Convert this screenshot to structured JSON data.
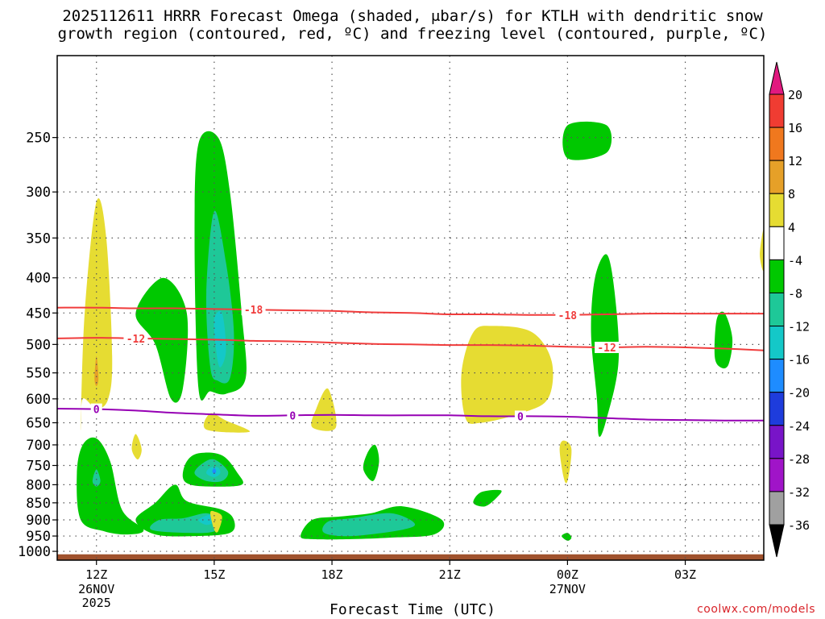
{
  "chart_data": {
    "type": "heatmap",
    "title_line1": "2025112611 HRRR Forecast Omega (shaded, μbar/s) for KTLH with dendritic snow",
    "title_line2": "growth region (contoured, red, ºC) and freezing level (contoured, purple, ºC)",
    "xlabel": "Forecast Time (UTC)",
    "credit": "coolwx.com/models",
    "x_hours_range": [
      -1,
      17
    ],
    "x_ticks": [
      {
        "hour": 0,
        "label": "12Z",
        "sub1": "26NOV",
        "sub2": "2025"
      },
      {
        "hour": 3,
        "label": "15Z",
        "sub1": "",
        "sub2": ""
      },
      {
        "hour": 6,
        "label": "18Z",
        "sub1": "",
        "sub2": ""
      },
      {
        "hour": 9,
        "label": "21Z",
        "sub1": "",
        "sub2": ""
      },
      {
        "hour": 12,
        "label": "00Z",
        "sub1": "27NOV",
        "sub2": ""
      },
      {
        "hour": 15,
        "label": "03Z",
        "sub1": "",
        "sub2": ""
      }
    ],
    "y_pressure_range": [
      1030,
      190
    ],
    "y_ticks": [
      "250",
      "300",
      "350",
      "400",
      "450",
      "500",
      "550",
      "600",
      "650",
      "700",
      "750",
      "800",
      "850",
      "900",
      "950",
      "1000"
    ],
    "colorbar": {
      "labels": [
        "20",
        "16",
        "12",
        "8",
        "4",
        "-4",
        "-8",
        "-12",
        "-16",
        "-20",
        "-24",
        "-28",
        "-32",
        "-36"
      ],
      "colors": [
        "#e1197f",
        "#f03c32",
        "#f0781e",
        "#e6a028",
        "#e6dc32",
        "#ffffff",
        "#00c800",
        "#1ec898",
        "#14c8c8",
        "#1e8cff",
        "#1e3cdc",
        "#7814c8",
        "#a014c8",
        "#a0a0a0",
        "#000000"
      ]
    },
    "omega_regions": [
      {
        "color": "#e6dc32",
        "points": [
          [
            -0.4,
            660
          ],
          [
            -0.3,
            450
          ],
          [
            0.0,
            310
          ],
          [
            0.25,
            350
          ],
          [
            0.4,
            520
          ],
          [
            0.3,
            600
          ],
          [
            0.0,
            620
          ],
          [
            -0.35,
            600
          ]
        ]
      },
      {
        "color": "#e6a028",
        "points": [
          [
            -0.05,
            560
          ],
          [
            0.0,
            520
          ],
          [
            0.05,
            560
          ],
          [
            0.0,
            575
          ]
        ]
      },
      {
        "color": "#00c800",
        "points": [
          [
            1.0,
            450
          ],
          [
            1.7,
            400
          ],
          [
            2.3,
            450
          ],
          [
            2.2,
            580
          ],
          [
            1.9,
            600
          ],
          [
            1.5,
            500
          ]
        ]
      },
      {
        "color": "#00c800",
        "points": [
          [
            2.6,
            580
          ],
          [
            2.5,
            350
          ],
          [
            2.6,
            255
          ],
          [
            3.1,
            250
          ],
          [
            3.4,
            300
          ],
          [
            3.7,
            450
          ],
          [
            3.8,
            560
          ],
          [
            3.3,
            590
          ],
          [
            2.9,
            585
          ]
        ]
      },
      {
        "color": "#1ec898",
        "points": [
          [
            2.9,
            540
          ],
          [
            2.8,
            420
          ],
          [
            3.0,
            320
          ],
          [
            3.3,
            380
          ],
          [
            3.5,
            480
          ],
          [
            3.4,
            560
          ],
          [
            3.1,
            565
          ]
        ]
      },
      {
        "color": "#14c8c8",
        "points": [
          [
            3.05,
            510
          ],
          [
            3.0,
            460
          ],
          [
            3.2,
            450
          ],
          [
            3.3,
            510
          ],
          [
            3.15,
            540
          ]
        ]
      },
      {
        "color": "#e6dc32",
        "points": [
          [
            2.8,
            665
          ],
          [
            2.9,
            630
          ],
          [
            3.3,
            645
          ],
          [
            3.9,
            670
          ]
        ]
      },
      {
        "color": "#e6dc32",
        "points": [
          [
            5.5,
            660
          ],
          [
            5.6,
            620
          ],
          [
            5.9,
            580
          ],
          [
            6.1,
            660
          ]
        ]
      },
      {
        "color": "#e6dc32",
        "points": [
          [
            0.9,
            710
          ],
          [
            1.0,
            675
          ],
          [
            1.15,
            710
          ],
          [
            1.05,
            735
          ]
        ]
      },
      {
        "color": "#00c800",
        "points": [
          [
            -0.5,
            770
          ],
          [
            -0.35,
            700
          ],
          [
            0.0,
            685
          ],
          [
            0.35,
            740
          ],
          [
            0.65,
            870
          ],
          [
            1.2,
            930
          ],
          [
            0.8,
            945
          ],
          [
            0.2,
            935
          ],
          [
            -0.4,
            900
          ]
        ]
      },
      {
        "color": "#1ec898",
        "points": [
          [
            -0.1,
            790
          ],
          [
            0.0,
            760
          ],
          [
            0.1,
            790
          ],
          [
            0.0,
            805
          ]
        ]
      },
      {
        "color": "#00c800",
        "points": [
          [
            1.0,
            900
          ],
          [
            1.5,
            850
          ],
          [
            2.0,
            800
          ],
          [
            2.3,
            845
          ],
          [
            3.2,
            870
          ],
          [
            3.5,
            900
          ],
          [
            3.4,
            940
          ],
          [
            2.5,
            950
          ],
          [
            1.5,
            945
          ]
        ]
      },
      {
        "color": "#1ec898",
        "points": [
          [
            1.4,
            930
          ],
          [
            1.6,
            900
          ],
          [
            2.2,
            895
          ],
          [
            2.8,
            880
          ],
          [
            3.1,
            900
          ],
          [
            3.0,
            935
          ],
          [
            2.3,
            940
          ]
        ]
      },
      {
        "color": "#14c8c8",
        "points": [
          [
            2.6,
            900
          ],
          [
            2.9,
            885
          ],
          [
            3.0,
            905
          ],
          [
            2.8,
            915
          ]
        ]
      },
      {
        "color": "#00c800",
        "points": [
          [
            2.2,
            780
          ],
          [
            2.3,
            740
          ],
          [
            2.6,
            720
          ],
          [
            3.2,
            725
          ],
          [
            3.6,
            770
          ],
          [
            3.7,
            800
          ],
          [
            3.0,
            805
          ],
          [
            2.4,
            800
          ]
        ]
      },
      {
        "color": "#1ec898",
        "points": [
          [
            2.5,
            770
          ],
          [
            2.7,
            745
          ],
          [
            3.0,
            735
          ],
          [
            3.35,
            765
          ],
          [
            3.2,
            790
          ],
          [
            2.8,
            790
          ]
        ]
      },
      {
        "color": "#14c8c8",
        "points": [
          [
            2.8,
            770
          ],
          [
            2.9,
            755
          ],
          [
            3.1,
            755
          ],
          [
            3.15,
            770
          ],
          [
            3.0,
            780
          ]
        ]
      },
      {
        "color": "#1e8cff",
        "points": [
          [
            2.95,
            765
          ],
          [
            3.0,
            757
          ],
          [
            3.05,
            765
          ],
          [
            3.0,
            772
          ]
        ]
      },
      {
        "color": "#e6dc32",
        "points": [
          [
            2.9,
            880
          ],
          [
            3.0,
            875
          ],
          [
            3.2,
            890
          ],
          [
            3.1,
            935
          ],
          [
            3.0,
            930
          ]
        ]
      },
      {
        "color": "#00c800",
        "points": [
          [
            5.2,
            950
          ],
          [
            5.5,
            900
          ],
          [
            6.2,
            890
          ],
          [
            7.0,
            880
          ],
          [
            7.8,
            860
          ],
          [
            8.8,
            900
          ],
          [
            8.6,
            945
          ],
          [
            7.5,
            955
          ],
          [
            6.5,
            960
          ],
          [
            5.5,
            960
          ]
        ]
      },
      {
        "color": "#1ec898",
        "points": [
          [
            5.8,
            940
          ],
          [
            5.9,
            905
          ],
          [
            6.5,
            895
          ],
          [
            7.5,
            880
          ],
          [
            8.1,
            910
          ],
          [
            7.8,
            930
          ],
          [
            6.5,
            950
          ]
        ]
      },
      {
        "color": "#00c800",
        "points": [
          [
            6.8,
            760
          ],
          [
            6.9,
            720
          ],
          [
            7.1,
            700
          ],
          [
            7.2,
            740
          ],
          [
            7.05,
            790
          ]
        ]
      },
      {
        "color": "#e6dc32",
        "points": [
          [
            9.4,
            640
          ],
          [
            9.3,
            550
          ],
          [
            9.6,
            480
          ],
          [
            10.1,
            470
          ],
          [
            11.1,
            480
          ],
          [
            11.6,
            530
          ],
          [
            11.5,
            600
          ],
          [
            10.8,
            630
          ],
          [
            9.8,
            650
          ]
        ]
      },
      {
        "color": "#00c800",
        "points": [
          [
            9.6,
            850
          ],
          [
            9.8,
            820
          ],
          [
            10.3,
            815
          ],
          [
            10.2,
            835
          ],
          [
            9.9,
            860
          ]
        ]
      },
      {
        "color": "#e6dc32",
        "points": [
          [
            11.8,
            710
          ],
          [
            11.9,
            690
          ],
          [
            12.1,
            710
          ],
          [
            12.0,
            790
          ],
          [
            11.9,
            780
          ]
        ]
      },
      {
        "color": "#00c800",
        "points": [
          [
            11.85,
            950
          ],
          [
            12.0,
            940
          ],
          [
            12.1,
            955
          ],
          [
            12.0,
            965
          ]
        ]
      },
      {
        "color": "#00c800",
        "points": [
          [
            12.0,
            240
          ],
          [
            13.0,
            240
          ],
          [
            13.0,
            263
          ],
          [
            12.0,
            268
          ]
        ]
      },
      {
        "color": "#00c800",
        "points": [
          [
            12.6,
            480
          ],
          [
            12.7,
            400
          ],
          [
            13.0,
            370
          ],
          [
            13.2,
            420
          ],
          [
            13.3,
            530
          ],
          [
            13.0,
            640
          ],
          [
            12.8,
            680
          ],
          [
            12.75,
            600
          ]
        ]
      },
      {
        "color": "#00c800",
        "points": [
          [
            15.75,
            520
          ],
          [
            15.8,
            460
          ],
          [
            16.0,
            450
          ],
          [
            16.2,
            490
          ],
          [
            16.1,
            535
          ],
          [
            15.9,
            540
          ]
        ]
      },
      {
        "color": "#e6dc32",
        "points": [
          [
            17.0,
            340
          ],
          [
            16.9,
            370
          ],
          [
            17.0,
            390
          ]
        ]
      }
    ],
    "contours": [
      {
        "name": "-18",
        "color": "#f03c3c",
        "label_at": [
          4.0,
          12.0
        ],
        "points": [
          [
            -1,
            442
          ],
          [
            0,
            442
          ],
          [
            1,
            443
          ],
          [
            2,
            443
          ],
          [
            3,
            444
          ],
          [
            4,
            445
          ],
          [
            5,
            446
          ],
          [
            6,
            447
          ],
          [
            7,
            449
          ],
          [
            8,
            450
          ],
          [
            9,
            452
          ],
          [
            10,
            452
          ],
          [
            11,
            453
          ],
          [
            12,
            453
          ],
          [
            13,
            452
          ],
          [
            14,
            451
          ],
          [
            15,
            451
          ],
          [
            16,
            451
          ],
          [
            17,
            451
          ]
        ]
      },
      {
        "name": "-12",
        "color": "#f03c3c",
        "label_at": [
          1.0,
          13.0
        ],
        "points": [
          [
            -1,
            490
          ],
          [
            0,
            489
          ],
          [
            1,
            490
          ],
          [
            2,
            491
          ],
          [
            3,
            492
          ],
          [
            4,
            494
          ],
          [
            5,
            495
          ],
          [
            6,
            497
          ],
          [
            7,
            499
          ],
          [
            8,
            500
          ],
          [
            9,
            501
          ],
          [
            10,
            501
          ],
          [
            11,
            502
          ],
          [
            12,
            504
          ],
          [
            13,
            505
          ],
          [
            14,
            504
          ],
          [
            15,
            505
          ],
          [
            16,
            507
          ],
          [
            17,
            510
          ]
        ]
      },
      {
        "name": "0",
        "color": "#9600b4",
        "label_at": [
          0.0,
          5.0,
          10.8
        ],
        "points": [
          [
            -1,
            620
          ],
          [
            0,
            621
          ],
          [
            1,
            624
          ],
          [
            2,
            629
          ],
          [
            3,
            632
          ],
          [
            4,
            635
          ],
          [
            5,
            634
          ],
          [
            6,
            633
          ],
          [
            7,
            634
          ],
          [
            8,
            634
          ],
          [
            9,
            634
          ],
          [
            10,
            636
          ],
          [
            11,
            636
          ],
          [
            12,
            637
          ],
          [
            13,
            640
          ],
          [
            14,
            643
          ],
          [
            15,
            644
          ],
          [
            16,
            645
          ],
          [
            17,
            645
          ]
        ]
      }
    ],
    "ground": {
      "color": "#a0522d",
      "from_pressure": 1010,
      "to_pressure": 1030
    }
  }
}
